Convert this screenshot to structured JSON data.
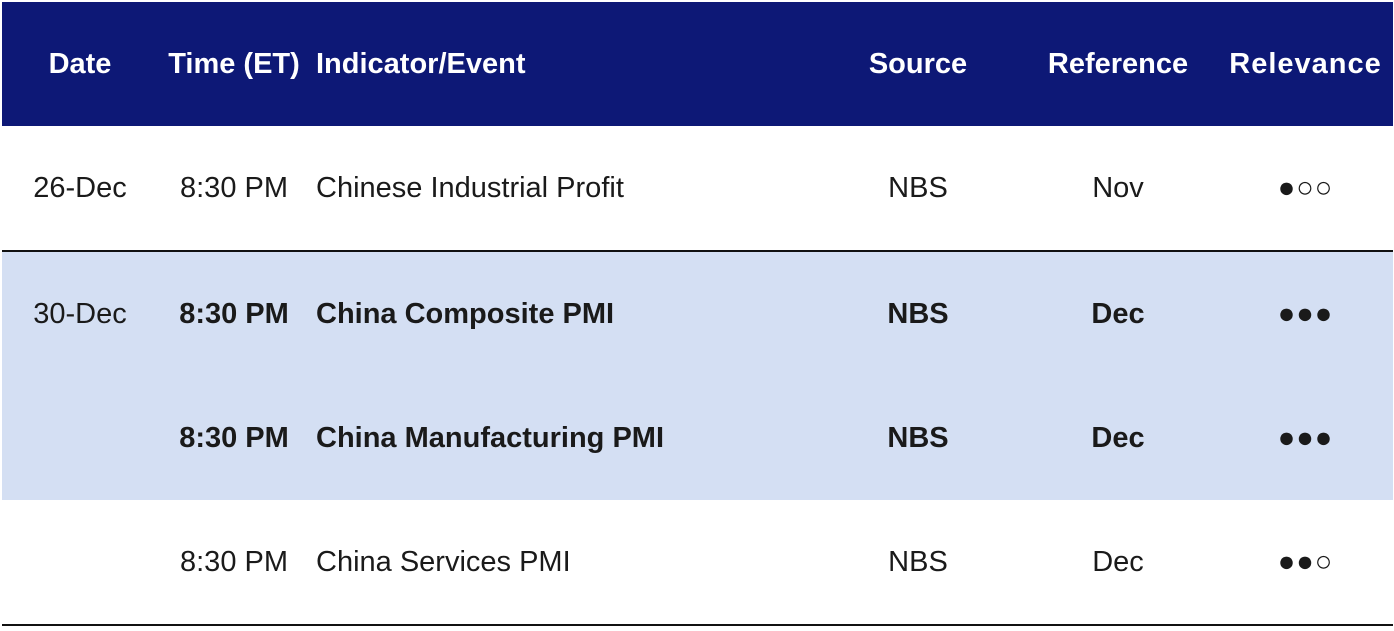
{
  "headers": {
    "date": "Date",
    "time": "Time (ET)",
    "event": "Indicator/Event",
    "source": "Source",
    "reference": "Reference",
    "relevance": "Relevance"
  },
  "rows": [
    {
      "date": "26-Dec",
      "time": "8:30 PM",
      "event": "Chinese Industrial Profit",
      "source": "NBS",
      "reference": "Nov",
      "relevance": "●○○",
      "bold": false,
      "highlight": false
    },
    {
      "date": "30-Dec",
      "time": "8:30 PM",
      "event": "China Composite PMI",
      "source": "NBS",
      "reference": "Dec",
      "relevance": "●●●",
      "bold": true,
      "highlight": true
    },
    {
      "date": "",
      "time": "8:30 PM",
      "event": "China Manufacturing PMI",
      "source": "NBS",
      "reference": "Dec",
      "relevance": "●●●",
      "bold": true,
      "highlight": true
    },
    {
      "date": "",
      "time": "8:30 PM",
      "event": "China Services PMI",
      "source": "NBS",
      "reference": "Dec",
      "relevance": "●●○",
      "bold": false,
      "highlight": false
    }
  ],
  "colors": {
    "header_bg": "#0d1876",
    "highlight_bg": "#d4dff3"
  }
}
